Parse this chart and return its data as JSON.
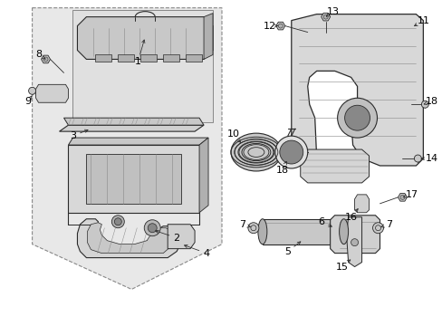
{
  "bg_color": "#ffffff",
  "fig_width": 4.89,
  "fig_height": 3.6,
  "dpi": 100,
  "line_color": "#2a2a2a",
  "light_gray": "#c8c8c8",
  "mid_gray": "#b0b0b0",
  "dark_gray": "#888888",
  "box_fill": "#e8e8e8",
  "text_color": "#000000"
}
